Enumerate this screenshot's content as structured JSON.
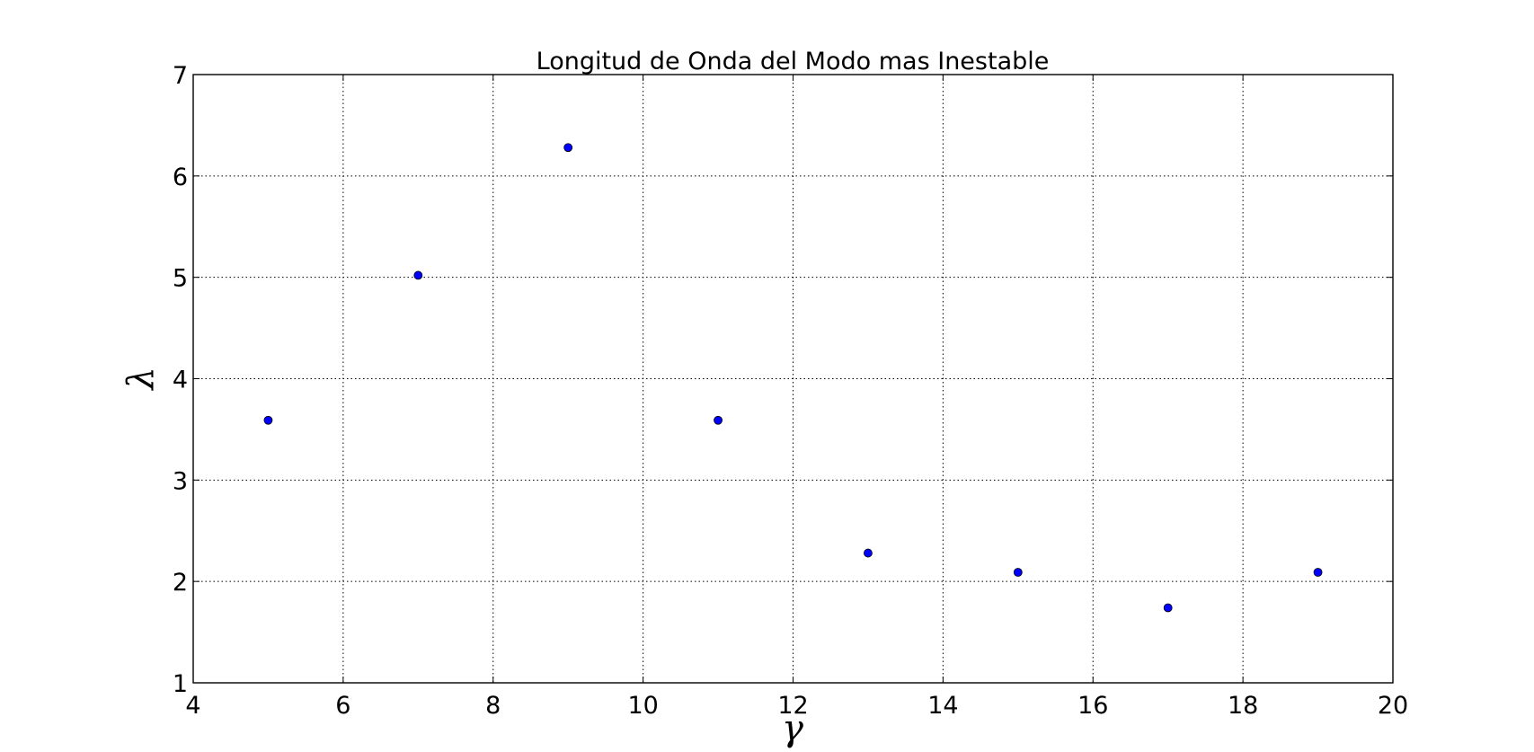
{
  "chart_data": {
    "type": "scatter",
    "title": "Longitud de Onda del Modo mas Inestable",
    "xlabel": "γ",
    "ylabel": "λ",
    "xlim": [
      4,
      20
    ],
    "ylim": [
      1,
      7
    ],
    "xticks": [
      4,
      6,
      8,
      10,
      12,
      14,
      16,
      18,
      20
    ],
    "yticks": [
      1,
      2,
      3,
      4,
      5,
      6,
      7
    ],
    "grid": true,
    "marker_color": "#0000ff",
    "series": [
      {
        "x": [
          5,
          7,
          9,
          11,
          13,
          15,
          17,
          19
        ],
        "y": [
          3.59,
          5.02,
          6.28,
          3.59,
          2.28,
          2.09,
          1.74,
          2.09
        ]
      }
    ]
  }
}
